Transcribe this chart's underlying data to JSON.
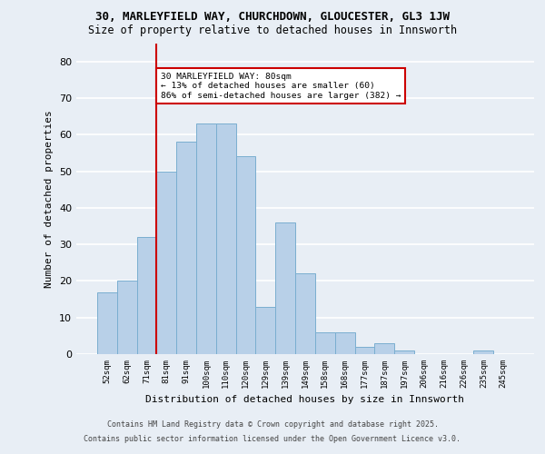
{
  "title_line1": "30, MARLEYFIELD WAY, CHURCHDOWN, GLOUCESTER, GL3 1JW",
  "title_line2": "Size of property relative to detached houses in Innsworth",
  "xlabel": "Distribution of detached houses by size in Innsworth",
  "ylabel": "Number of detached properties",
  "categories": [
    "52sqm",
    "62sqm",
    "71sqm",
    "81sqm",
    "91sqm",
    "100sqm",
    "110sqm",
    "120sqm",
    "129sqm",
    "139sqm",
    "149sqm",
    "158sqm",
    "168sqm",
    "177sqm",
    "187sqm",
    "197sqm",
    "206sqm",
    "216sqm",
    "226sqm",
    "235sqm",
    "245sqm"
  ],
  "values": [
    17,
    20,
    32,
    50,
    58,
    63,
    63,
    54,
    13,
    36,
    22,
    6,
    6,
    2,
    3,
    1,
    0,
    0,
    0,
    1,
    0
  ],
  "bar_color": "#b8d0e8",
  "bar_edge_color": "#7aaed0",
  "ylim": [
    0,
    85
  ],
  "yticks": [
    0,
    10,
    20,
    30,
    40,
    50,
    60,
    70,
    80
  ],
  "vline_index": 3,
  "vline_color": "#cc0000",
  "annotation_text": "30 MARLEYFIELD WAY: 80sqm\n← 13% of detached houses are smaller (60)\n86% of semi-detached houses are larger (382) →",
  "annotation_box_color": "#cc0000",
  "footer_line1": "Contains HM Land Registry data © Crown copyright and database right 2025.",
  "footer_line2": "Contains public sector information licensed under the Open Government Licence v3.0.",
  "background_color": "#e8eef5",
  "grid_color": "#ffffff"
}
